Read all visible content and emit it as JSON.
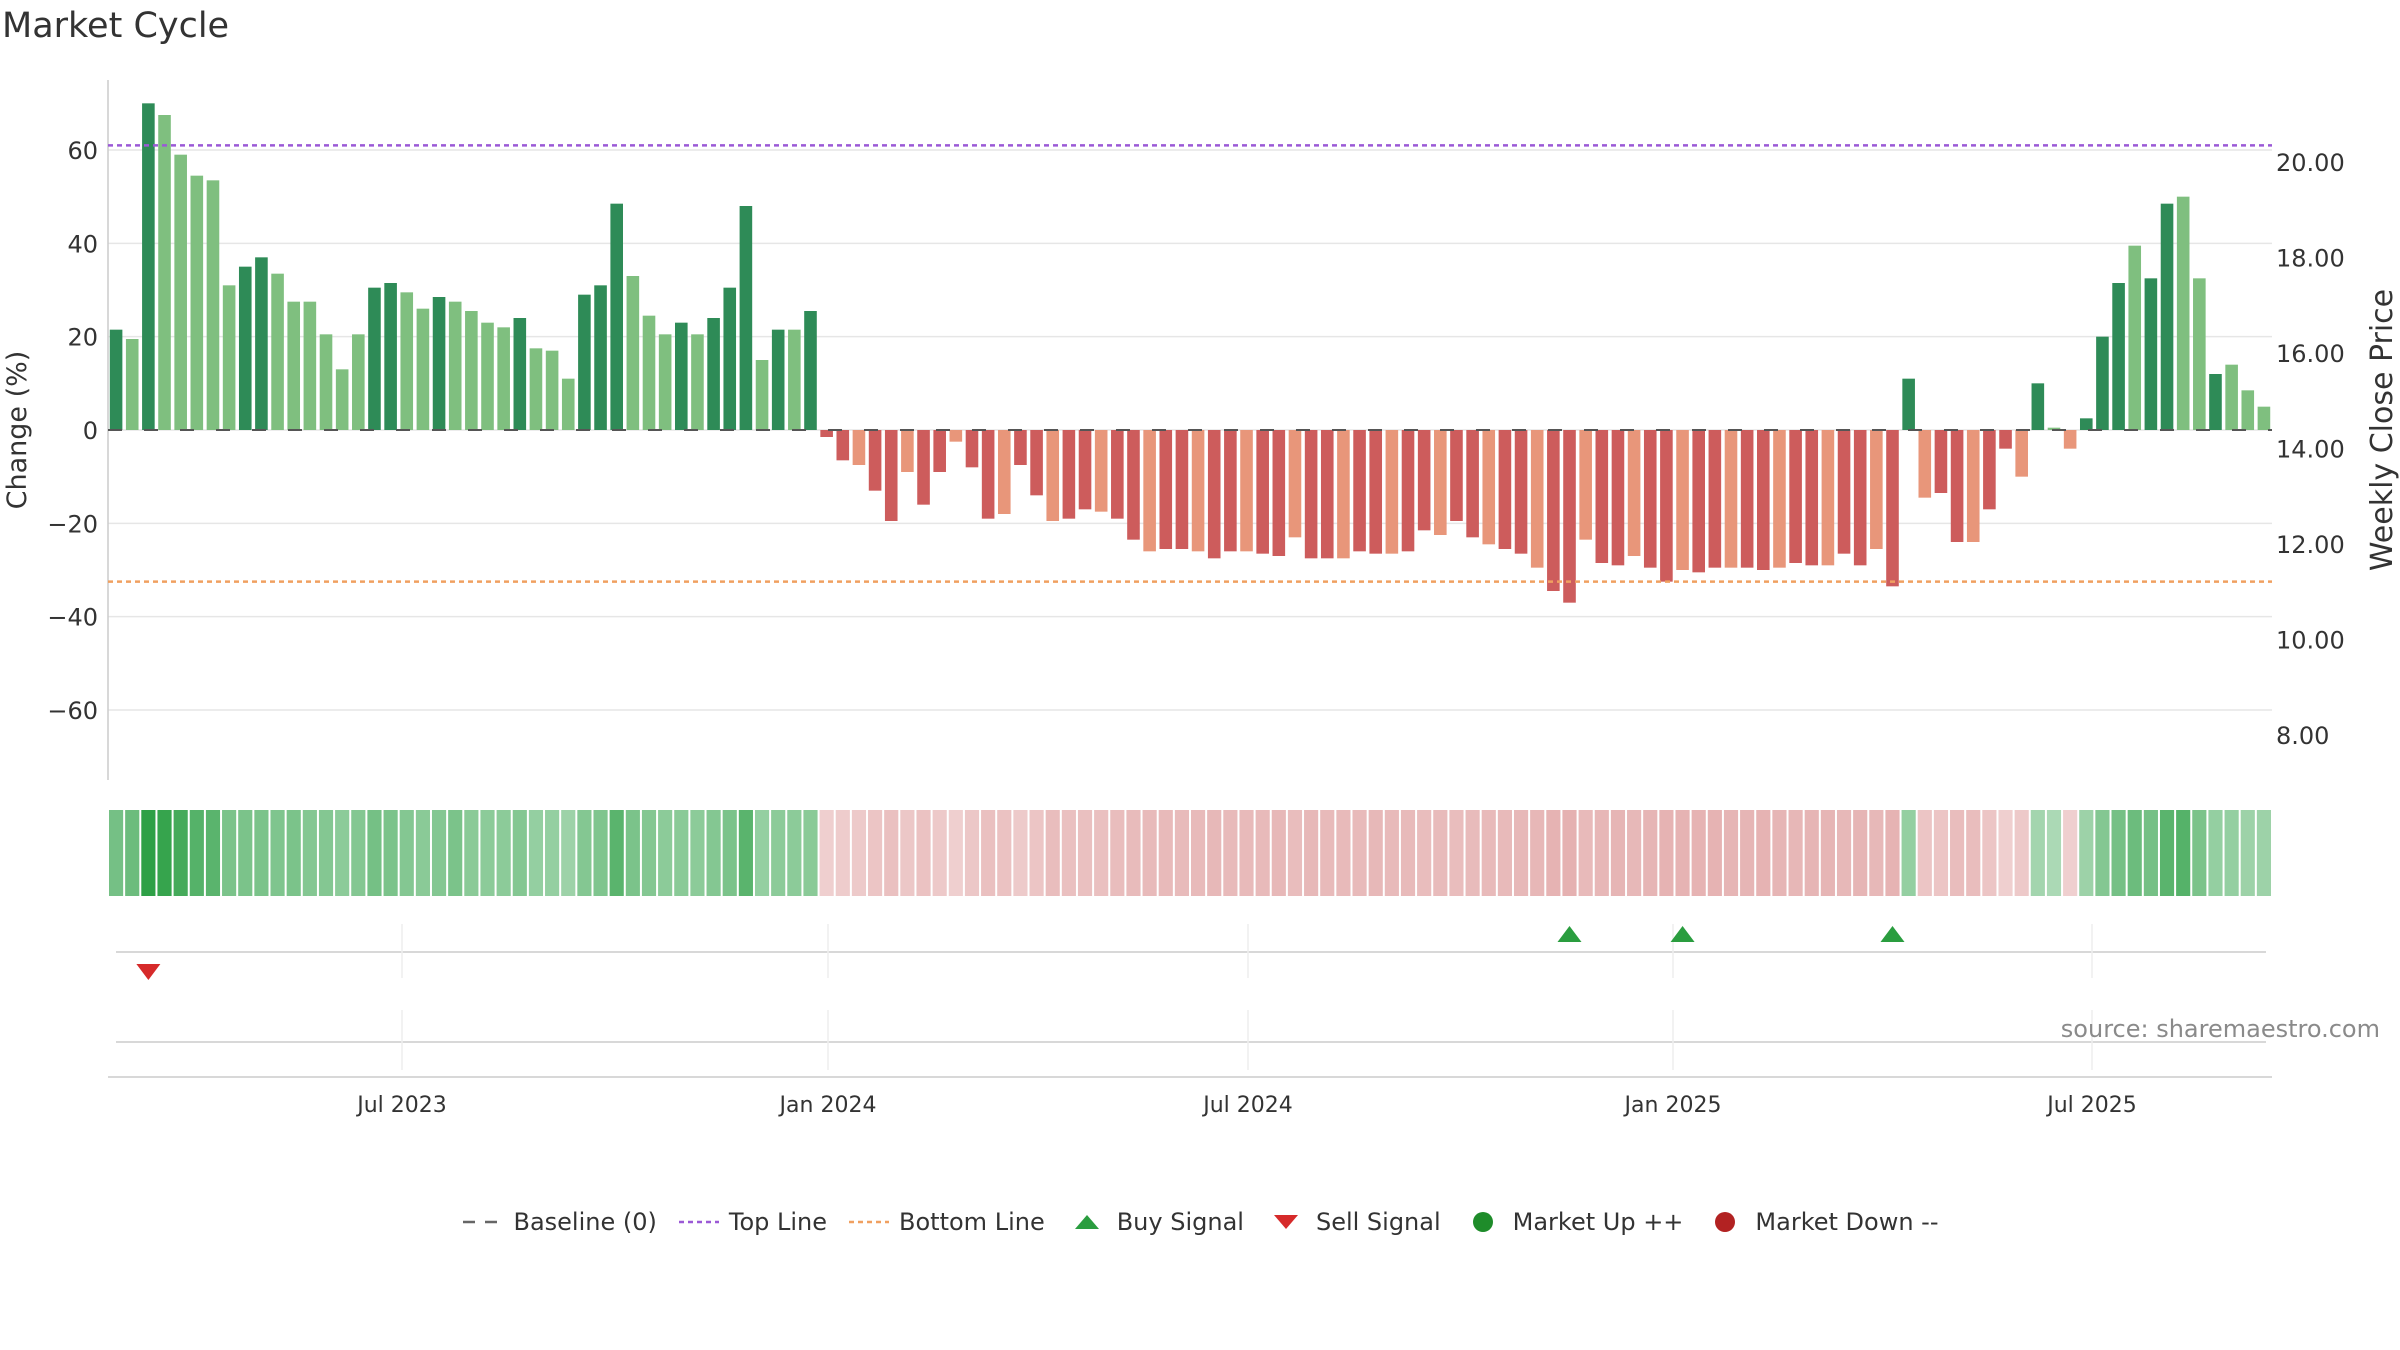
{
  "title": "Market Cycle",
  "source": "source: sharemaestro.com",
  "chart_data": {
    "type": "bar",
    "title": "Market Cycle",
    "ylabel": "Change (%)",
    "y2label": "Weekly Close Price",
    "ylim": [
      -75,
      75
    ],
    "y_ticks": [
      -60,
      -40,
      -20,
      0,
      20,
      40,
      60
    ],
    "y_tick_labels": [
      "−60",
      "−40",
      "−20",
      "0",
      "20",
      "40",
      "60"
    ],
    "y2_ticks": [
      "8.00",
      "10.00",
      "12.00",
      "14.00",
      "16.00",
      "18.00",
      "20.00"
    ],
    "x_tick_labels": [
      "Jul 2023",
      "Jan 2024",
      "Jul 2024",
      "Jan 2025",
      "Jul 2025"
    ],
    "top_line": 61,
    "bottom_line": -32.5,
    "values": [
      21.5,
      19.5,
      70,
      67.5,
      59,
      54.5,
      53.5,
      31,
      35,
      37,
      33.5,
      27.5,
      27.5,
      20.5,
      13,
      20.5,
      30.5,
      31.5,
      29.5,
      26,
      28.5,
      27.5,
      25.5,
      23,
      22,
      24,
      17.5,
      17,
      11,
      29,
      31,
      48.5,
      33,
      24.5,
      20.5,
      23,
      20.5,
      24,
      30.5,
      48,
      15,
      21.5,
      21.5,
      25.5,
      -1.5,
      -6.5,
      -7.5,
      -13,
      -19.5,
      -9,
      -16,
      -9,
      -2.5,
      -8,
      -19,
      -18,
      -7.5,
      -14,
      -19.5,
      -19,
      -17,
      -17.5,
      -19,
      -23.5,
      -26,
      -25.5,
      -25.5,
      -26,
      -27.5,
      -26,
      -26,
      -26.5,
      -27,
      -23,
      -27.5,
      -27.5,
      -27.5,
      -26,
      -26.5,
      -26.5,
      -26,
      -21.5,
      -22.5,
      -19.5,
      -23,
      -24.5,
      -25.5,
      -26.5,
      -29.5,
      -34.5,
      -37,
      -23.5,
      -28.5,
      -29,
      -27,
      -29.5,
      -32.5,
      -30,
      -30.5,
      -29.5,
      -29.5,
      -29.5,
      -30,
      -29.5,
      -28.5,
      -29,
      -29,
      -26.5,
      -29,
      -25.5,
      -33.5,
      11,
      -14.5,
      -13.5,
      -24,
      -24,
      -17,
      -4,
      -10,
      10,
      0.5,
      -4,
      2.5,
      20,
      31.5,
      39.5,
      32.5,
      48.5,
      50,
      32.5,
      12,
      14,
      8.5,
      5
    ],
    "heat_strip": [
      0.55,
      0.6,
      1.0,
      0.95,
      0.85,
      0.75,
      0.72,
      0.5,
      0.5,
      0.5,
      0.48,
      0.5,
      0.45,
      0.45,
      0.4,
      0.45,
      0.55,
      0.5,
      0.45,
      0.42,
      0.45,
      0.5,
      0.42,
      0.4,
      0.4,
      0.45,
      0.35,
      0.35,
      0.3,
      0.45,
      0.48,
      0.72,
      0.5,
      0.45,
      0.4,
      0.42,
      0.4,
      0.45,
      0.5,
      0.72,
      0.35,
      0.4,
      0.4,
      0.42,
      -0.3,
      -0.35,
      -0.38,
      -0.45,
      -0.5,
      -0.42,
      -0.48,
      -0.4,
      -0.3,
      -0.42,
      -0.5,
      -0.48,
      -0.38,
      -0.45,
      -0.55,
      -0.5,
      -0.5,
      -0.52,
      -0.55,
      -0.58,
      -0.6,
      -0.6,
      -0.58,
      -0.6,
      -0.62,
      -0.6,
      -0.6,
      -0.6,
      -0.62,
      -0.55,
      -0.62,
      -0.6,
      -0.6,
      -0.6,
      -0.62,
      -0.6,
      -0.6,
      -0.55,
      -0.58,
      -0.55,
      -0.58,
      -0.6,
      -0.6,
      -0.62,
      -0.65,
      -0.7,
      -0.72,
      -0.6,
      -0.65,
      -0.66,
      -0.62,
      -0.66,
      -0.7,
      -0.68,
      -0.68,
      -0.68,
      -0.66,
      -0.66,
      -0.68,
      -0.66,
      -0.65,
      -0.66,
      -0.66,
      -0.62,
      -0.66,
      -0.62,
      -0.7,
      0.35,
      -0.45,
      -0.45,
      -0.55,
      -0.55,
      -0.45,
      -0.3,
      -0.4,
      0.25,
      0.2,
      -0.3,
      0.3,
      0.45,
      0.55,
      0.6,
      0.55,
      0.72,
      0.75,
      0.5,
      0.35,
      0.35,
      0.3,
      0.3
    ],
    "buy_signals": [
      90,
      97,
      110
    ],
    "sell_signals": [
      2
    ],
    "legend": [
      {
        "key": "baseline",
        "label": "Baseline (0)",
        "color": "#666666"
      },
      {
        "key": "top",
        "label": "Top Line",
        "color": "#9b59d6"
      },
      {
        "key": "bottom",
        "label": "Bottom Line",
        "color": "#f0a060"
      },
      {
        "key": "buy",
        "label": "Buy Signal",
        "color": "#2a9d3f"
      },
      {
        "key": "sell",
        "label": "Sell Signal",
        "color": "#d62a2a"
      },
      {
        "key": "up",
        "label": "Market Up ++",
        "color": "#1e8c2a"
      },
      {
        "key": "down",
        "label": "Market Down --",
        "color": "#b22222"
      }
    ]
  }
}
